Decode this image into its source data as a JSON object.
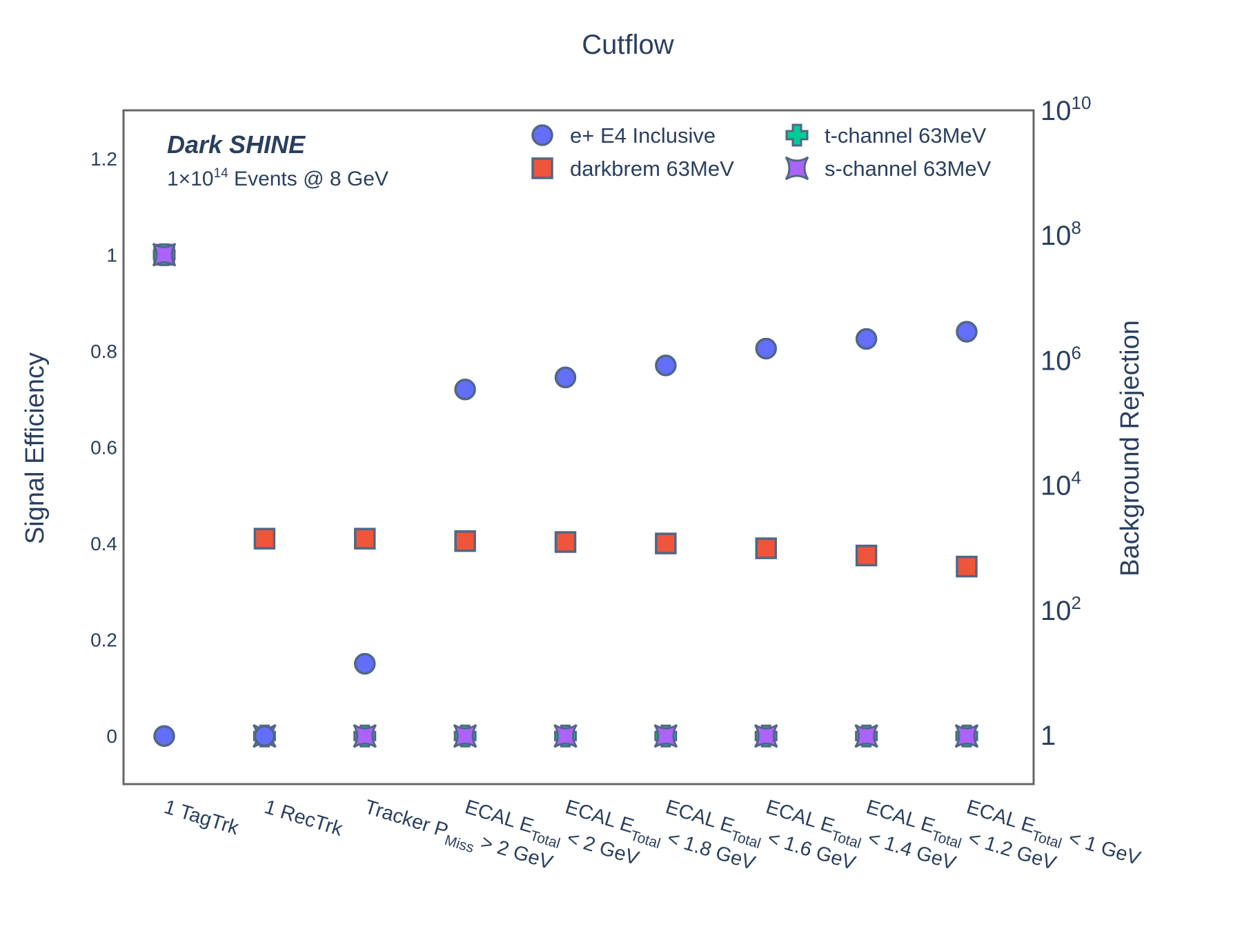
{
  "chart_data": {
    "type": "scatter",
    "title": "Cutflow",
    "ylabel": "Signal Efficiency",
    "y2label": "Background Rejection",
    "ylim": [
      -0.1,
      1.3
    ],
    "yticks": [
      "0",
      "0.2",
      "0.4",
      "0.6",
      "0.8",
      "1",
      "1.2"
    ],
    "ytick_values": [
      0,
      0.2,
      0.4,
      0.6,
      0.8,
      1,
      1.2
    ],
    "y2_scale": "log",
    "y2ticks": [
      {
        "base": "1",
        "exp": ""
      },
      {
        "base": "10",
        "exp": "2"
      },
      {
        "base": "10",
        "exp": "4"
      },
      {
        "base": "10",
        "exp": "6"
      },
      {
        "base": "10",
        "exp": "8"
      },
      {
        "base": "10",
        "exp": "10"
      }
    ],
    "categories": [
      {
        "parts": [
          {
            "t": "1 TagTrk",
            "s": ""
          }
        ]
      },
      {
        "parts": [
          {
            "t": "1 RecTrk",
            "s": ""
          }
        ]
      },
      {
        "parts": [
          {
            "t": "Tracker P",
            "s": ""
          },
          {
            "t": "Miss",
            "s": "sub"
          },
          {
            "t": " > 2 GeV",
            "s": ""
          }
        ]
      },
      {
        "parts": [
          {
            "t": "ECAL E",
            "s": ""
          },
          {
            "t": "Total",
            "s": "sub"
          },
          {
            "t": " < 2 GeV",
            "s": ""
          }
        ]
      },
      {
        "parts": [
          {
            "t": "ECAL E",
            "s": ""
          },
          {
            "t": "Total",
            "s": "sub"
          },
          {
            "t": " < 1.8 GeV",
            "s": ""
          }
        ]
      },
      {
        "parts": [
          {
            "t": "ECAL E",
            "s": ""
          },
          {
            "t": "Total",
            "s": "sub"
          },
          {
            "t": " < 1.6 GeV",
            "s": ""
          }
        ]
      },
      {
        "parts": [
          {
            "t": "ECAL E",
            "s": ""
          },
          {
            "t": "Total",
            "s": "sub"
          },
          {
            "t": " < 1.4 GeV",
            "s": ""
          }
        ]
      },
      {
        "parts": [
          {
            "t": "ECAL E",
            "s": ""
          },
          {
            "t": "Total",
            "s": "sub"
          },
          {
            "t": " < 1.2 GeV",
            "s": ""
          }
        ]
      },
      {
        "parts": [
          {
            "t": "ECAL E",
            "s": ""
          },
          {
            "t": "Total",
            "s": "sub"
          },
          {
            "t": " < 1 GeV",
            "s": ""
          }
        ]
      }
    ],
    "series": [
      {
        "name": "e+ E4 Inclusive",
        "symbol": "circle",
        "color": "#636efa",
        "values": [
          0,
          0,
          0.15,
          0.72,
          0.745,
          0.77,
          0.805,
          0.825,
          0.84
        ]
      },
      {
        "name": "darkbrem 63MeV",
        "symbol": "square",
        "color": "#ef553b",
        "values": [
          1,
          0.41,
          0.41,
          0.405,
          0.403,
          0.4,
          0.39,
          0.375,
          0.352
        ]
      },
      {
        "name": "t-channel 63MeV",
        "symbol": "cross",
        "color": "#00cc96",
        "values": [
          1,
          0,
          0,
          0,
          0,
          0,
          0,
          0,
          0
        ]
      },
      {
        "name": "s-channel 63MeV",
        "symbol": "star-square",
        "color": "#ab63fa",
        "values": [
          1,
          0,
          0,
          0,
          0,
          0,
          0,
          0,
          0
        ]
      }
    ],
    "overlay_on_top": {
      "series": "e+ E4 Inclusive",
      "categories": [
        1
      ]
    },
    "marker_outline": "#506784",
    "legend_position": "top-right",
    "grid": false
  },
  "annotations": {
    "brand": "Dark SHINE",
    "events_prefix": "1×10",
    "events_exp": "14",
    "events_suffix": " Events @ 8 GeV"
  }
}
